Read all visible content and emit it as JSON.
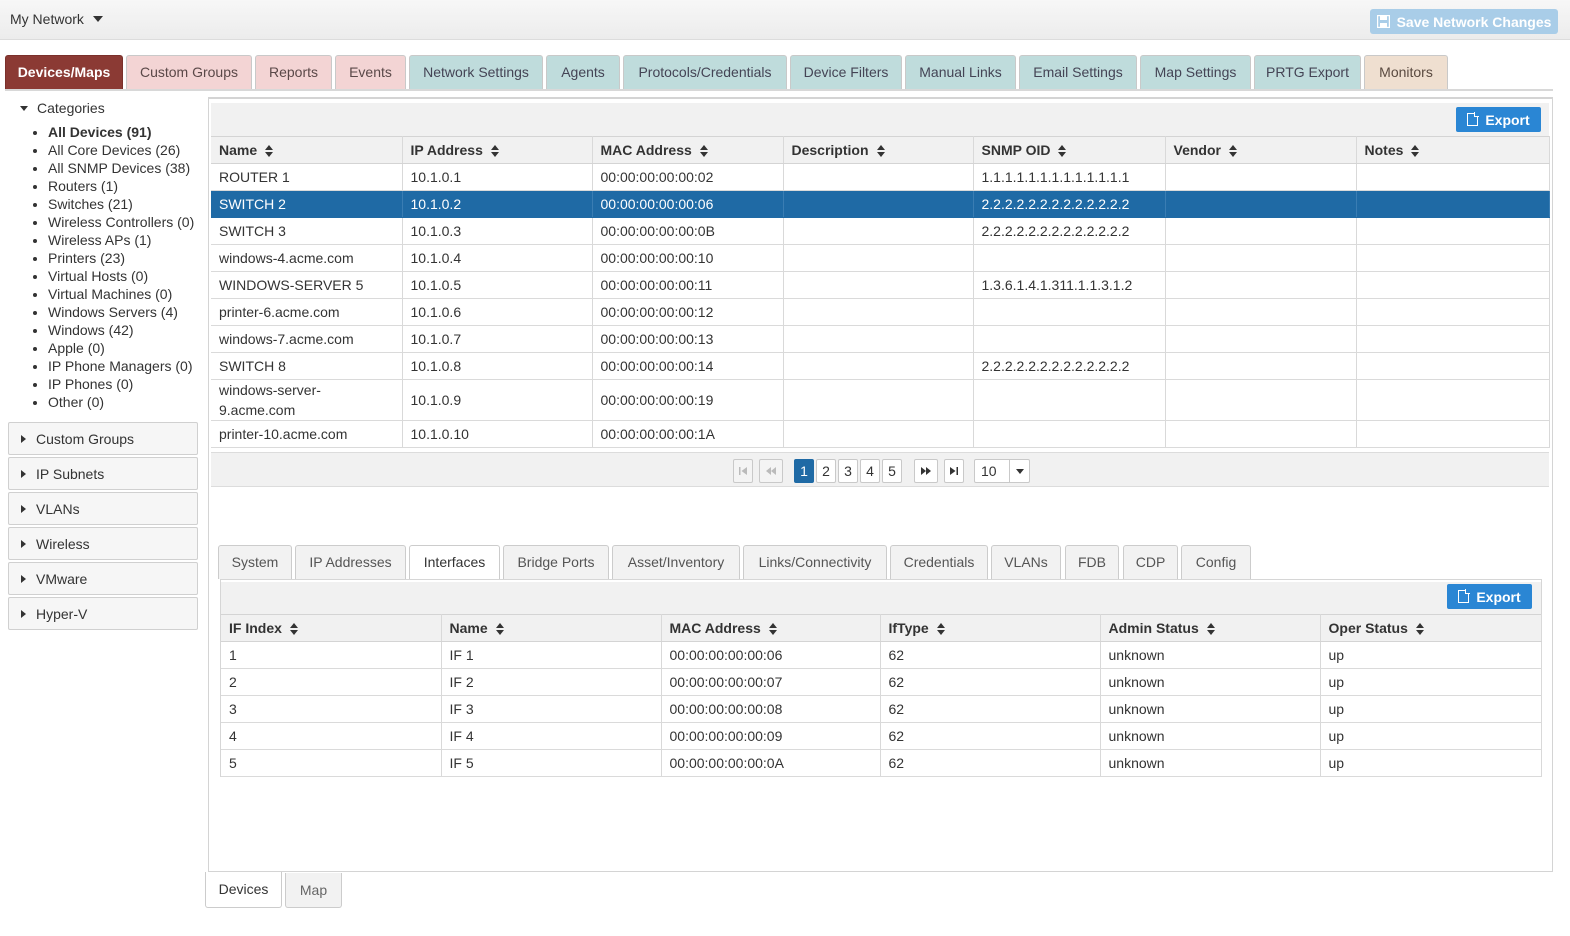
{
  "topbar": {
    "network_label": "My Network",
    "save_label": "Save Network Changes"
  },
  "main_tabs": [
    {
      "label": "Devices/Maps"
    },
    {
      "label": "Custom Groups"
    },
    {
      "label": "Reports"
    },
    {
      "label": "Events"
    },
    {
      "label": "Network Settings"
    },
    {
      "label": "Agents"
    },
    {
      "label": "Protocols/Credentials"
    },
    {
      "label": "Device Filters"
    },
    {
      "label": "Manual Links"
    },
    {
      "label": "Email Settings"
    },
    {
      "label": "Map Settings"
    },
    {
      "label": "PRTG Export"
    },
    {
      "label": "Monitors"
    }
  ],
  "sidebar": {
    "categories_label": "Categories",
    "categories": [
      "All Devices (91)",
      "All Core Devices (26)",
      "All SNMP Devices (38)",
      "Routers (1)",
      "Switches (21)",
      "Wireless Controllers (0)",
      "Wireless APs (1)",
      "Printers (23)",
      "Virtual Hosts (0)",
      "Virtual Machines (0)",
      "Windows Servers (4)",
      "Windows (42)",
      "Apple (0)",
      "IP Phone Managers (0)",
      "IP Phones (0)",
      "Other (0)"
    ],
    "sections": [
      "Custom Groups",
      "IP Subnets",
      "VLANs",
      "Wireless",
      "VMware",
      "Hyper-V"
    ]
  },
  "devices": {
    "export_label": "Export",
    "headers": [
      "Name",
      "IP Address",
      "MAC Address",
      "Description",
      "SNMP OID",
      "Vendor",
      "Notes"
    ],
    "rows": [
      [
        "ROUTER 1",
        "10.1.0.1",
        "00:00:00:00:00:02",
        "",
        "1.1.1.1.1.1.1.1.1.1.1.1.1",
        "",
        ""
      ],
      [
        "SWITCH 2",
        "10.1.0.2",
        "00:00:00:00:00:06",
        "",
        "2.2.2.2.2.2.2.2.2.2.2.2.2",
        "",
        ""
      ],
      [
        "SWITCH 3",
        "10.1.0.3",
        "00:00:00:00:00:0B",
        "",
        "2.2.2.2.2.2.2.2.2.2.2.2.2",
        "",
        ""
      ],
      [
        "windows-4.acme.com",
        "10.1.0.4",
        "00:00:00:00:00:10",
        "",
        "",
        "",
        ""
      ],
      [
        "WINDOWS-SERVER 5",
        "10.1.0.5",
        "00:00:00:00:00:11",
        "",
        "1.3.6.1.4.1.311.1.1.3.1.2",
        "",
        ""
      ],
      [
        "printer-6.acme.com",
        "10.1.0.6",
        "00:00:00:00:00:12",
        "",
        "",
        "",
        ""
      ],
      [
        "windows-7.acme.com",
        "10.1.0.7",
        "00:00:00:00:00:13",
        "",
        "",
        "",
        ""
      ],
      [
        "SWITCH 8",
        "10.1.0.8",
        "00:00:00:00:00:14",
        "",
        "2.2.2.2.2.2.2.2.2.2.2.2.2",
        "",
        ""
      ],
      [
        "windows-server-9.acme.com",
        "10.1.0.9",
        "00:00:00:00:00:19",
        "",
        "",
        "",
        ""
      ],
      [
        "printer-10.acme.com",
        "10.1.0.10",
        "00:00:00:00:00:1A",
        "",
        "",
        "",
        ""
      ]
    ],
    "selected_row": 1,
    "pager": {
      "pages": [
        "1",
        "2",
        "3",
        "4",
        "5"
      ],
      "current": "1",
      "page_size": "10"
    }
  },
  "detail_tabs": [
    {
      "label": "System"
    },
    {
      "label": "IP Addresses"
    },
    {
      "label": "Interfaces"
    },
    {
      "label": "Bridge Ports"
    },
    {
      "label": "Asset/Inventory"
    },
    {
      "label": "Links/Connectivity"
    },
    {
      "label": "Credentials"
    },
    {
      "label": "VLANs"
    },
    {
      "label": "FDB"
    },
    {
      "label": "CDP"
    },
    {
      "label": "Config"
    }
  ],
  "interfaces": {
    "export_label": "Export",
    "headers": [
      "IF Index",
      "Name",
      "MAC Address",
      "IfType",
      "Admin Status",
      "Oper Status"
    ],
    "rows": [
      [
        "1",
        "IF 1",
        "00:00:00:00:00:06",
        "62",
        "unknown",
        "up"
      ],
      [
        "2",
        "IF 2",
        "00:00:00:00:00:07",
        "62",
        "unknown",
        "up"
      ],
      [
        "3",
        "IF 3",
        "00:00:00:00:00:08",
        "62",
        "unknown",
        "up"
      ],
      [
        "4",
        "IF 4",
        "00:00:00:00:00:09",
        "62",
        "unknown",
        "up"
      ],
      [
        "5",
        "IF 5",
        "00:00:00:00:00:0A",
        "62",
        "unknown",
        "up"
      ]
    ]
  },
  "bottom_tabs": [
    {
      "label": "Devices"
    },
    {
      "label": "Map"
    }
  ],
  "colors": {
    "active_tab": "#8b3a34",
    "selection": "#1f6aa5",
    "export_button": "#2a86d4",
    "save_button": "#a9cde8"
  }
}
